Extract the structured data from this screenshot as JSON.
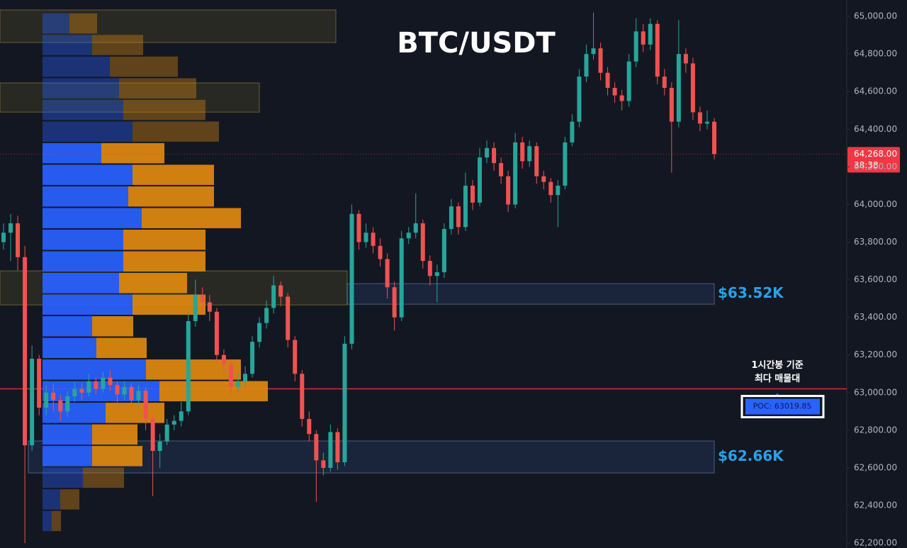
{
  "chart_data": {
    "type": "candlestick",
    "title": "BTC/USDT",
    "ylim": [
      62174,
      65087
    ],
    "yticks": [
      {
        "value": 65000,
        "label": "65,000.00"
      },
      {
        "value": 64800,
        "label": "64,800.00"
      },
      {
        "value": 64600,
        "label": "64,600.00"
      },
      {
        "value": 64400,
        "label": "64,400.00"
      },
      {
        "value": 64200,
        "label": "64,200.00"
      },
      {
        "value": 64000,
        "label": "64,000.00"
      },
      {
        "value": 63800,
        "label": "63,800.00"
      },
      {
        "value": 63600,
        "label": "63,600.00"
      },
      {
        "value": 63400,
        "label": "63,400.00"
      },
      {
        "value": 63200,
        "label": "63,200.00"
      },
      {
        "value": 63000,
        "label": "63,000.00"
      },
      {
        "value": 62800,
        "label": "62,800.00"
      },
      {
        "value": 62600,
        "label": "62,600.00"
      },
      {
        "value": 62400,
        "label": "62,400.00"
      },
      {
        "value": 62200,
        "label": "62,200.00"
      }
    ],
    "grid": false,
    "up_color": "#26a69a",
    "down_color": "#ef5350",
    "open": [
      63800,
      63850,
      63900,
      63720,
      62720,
      63180,
      62920,
      63000,
      62960,
      62900,
      62980,
      63020,
      63000,
      63060,
      63020,
      63080,
      63040,
      62990,
      63030,
      62960,
      63010,
      62860,
      62690,
      62740,
      62830,
      62850,
      62900,
      63380,
      63520,
      63480,
      63430,
      63200,
      63150,
      63030,
      63060,
      63100,
      63270,
      63370,
      63450,
      63570,
      63510,
      63280,
      63100,
      62860,
      62780,
      62640,
      62600,
      62790,
      62630,
      63260,
      63950,
      63800,
      63850,
      63780,
      63710,
      63560,
      63400,
      63820,
      63850,
      63900,
      63700,
      63620,
      63640,
      63870,
      63990,
      63880,
      64100,
      64010,
      64250,
      64300,
      64220,
      64150,
      64000,
      64330,
      64230,
      64310,
      64150,
      64120,
      64050,
      64100,
      64330,
      64440,
      64680,
      64800,
      64830,
      64700,
      64620,
      64580,
      64550,
      64760,
      64920,
      64850,
      64960,
      64680,
      64620,
      64440,
      64800,
      64750,
      64490,
      64430,
      64440
    ],
    "high": [
      63900,
      63950,
      63940,
      63780,
      63250,
      63200,
      63040,
      63050,
      62990,
      63010,
      63060,
      63050,
      63100,
      63080,
      63110,
      63120,
      63060,
      63060,
      63050,
      63040,
      63030,
      62880,
      62780,
      62860,
      62880,
      62950,
      63420,
      63600,
      63560,
      63520,
      63450,
      63230,
      63170,
      63100,
      63140,
      63300,
      63400,
      63490,
      63620,
      63590,
      63530,
      63300,
      63120,
      62900,
      62800,
      62680,
      62830,
      62810,
      63300,
      64000,
      63970,
      63900,
      63880,
      63820,
      63740,
      63590,
      63860,
      63880,
      64060,
      63920,
      63730,
      63680,
      63900,
      64030,
      64010,
      64170,
      64130,
      64300,
      64340,
      64330,
      64250,
      64180,
      64380,
      64360,
      64340,
      64330,
      64180,
      64140,
      64130,
      64360,
      64480,
      64720,
      64850,
      65020,
      64860,
      64730,
      64650,
      64610,
      64800,
      64990,
      64960,
      64990,
      64980,
      64720,
      64650,
      64980,
      64830,
      64780,
      64520,
      64500,
      64460
    ],
    "low": [
      63760,
      63700,
      63650,
      62200,
      62690,
      62880,
      62880,
      62900,
      62850,
      62870,
      62950,
      62960,
      62980,
      62990,
      63000,
      63010,
      62950,
      62960,
      62920,
      62930,
      62800,
      62450,
      62600,
      62720,
      62800,
      62820,
      62880,
      63350,
      63420,
      63380,
      63160,
      63100,
      62990,
      63000,
      63030,
      63080,
      63240,
      63340,
      63420,
      63460,
      63240,
      63060,
      62820,
      62740,
      62420,
      62560,
      62580,
      62590,
      62610,
      63230,
      63760,
      63770,
      63740,
      63670,
      63500,
      63330,
      63380,
      63790,
      63820,
      63660,
      63570,
      63480,
      63610,
      63840,
      63840,
      63860,
      63970,
      63990,
      64220,
      64180,
      64110,
      63960,
      63980,
      64190,
      64200,
      64110,
      64080,
      64010,
      63880,
      64080,
      64310,
      64410,
      64650,
      64770,
      64660,
      64580,
      64540,
      64500,
      64520,
      64730,
      64810,
      64820,
      64640,
      64580,
      64170,
      64410,
      64700,
      64450,
      64390,
      64400,
      64240
    ],
    "close": [
      63850,
      63900,
      63720,
      62720,
      63180,
      62920,
      63000,
      62960,
      62900,
      62980,
      63020,
      63000,
      63060,
      63020,
      63080,
      63040,
      62990,
      63030,
      62960,
      63010,
      62860,
      62690,
      62740,
      62830,
      62850,
      62900,
      63380,
      63520,
      63480,
      63430,
      63200,
      63150,
      63030,
      63060,
      63100,
      63270,
      63370,
      63450,
      63570,
      63510,
      63280,
      63100,
      62860,
      62780,
      62640,
      62600,
      62790,
      62630,
      63260,
      63950,
      63800,
      63850,
      63780,
      63710,
      63560,
      63400,
      63820,
      63850,
      63900,
      63700,
      63620,
      63640,
      63870,
      63990,
      63880,
      64100,
      64010,
      64250,
      64300,
      64220,
      64150,
      64000,
      64330,
      64230,
      64310,
      64150,
      64120,
      64050,
      64100,
      64330,
      64440,
      64680,
      64800,
      64830,
      64700,
      64620,
      64580,
      64550,
      64760,
      64920,
      64850,
      64960,
      64680,
      64620,
      64440,
      64800,
      64750,
      64490,
      64430,
      64440,
      64268
    ],
    "profile": {
      "bins": [
        65020,
        64905,
        64790,
        64675,
        64560,
        64445,
        64330,
        64215,
        64100,
        63985,
        63870,
        63755,
        63640,
        63525,
        63410,
        63295,
        63180,
        63065,
        62950,
        62835,
        62720,
        62605,
        62490,
        62375,
        62260
      ],
      "buy_color": "#2962ff",
      "sell_color": "#e08a10",
      "buy": [
        38,
        70,
        95,
        108,
        114,
        127,
        83,
        127,
        121,
        140,
        114,
        114,
        108,
        127,
        70,
        76,
        146,
        165,
        89,
        70,
        70,
        57,
        25,
        13
      ],
      "sell": [
        39,
        72,
        96,
        109,
        116,
        122,
        89,
        115,
        121,
        140,
        116,
        116,
        96,
        103,
        58,
        71,
        134,
        153,
        83,
        64,
        71,
        58,
        27,
        13
      ],
      "value_area": [
        62605,
        64330
      ]
    },
    "highlight_boxes": [
      {
        "top": 65034,
        "bottom": 64861
      },
      {
        "top": 64646,
        "bottom": 64491
      },
      {
        "top": 63647,
        "bottom": 63466
      }
    ],
    "zones": [
      {
        "top": 63579,
        "bottom": 63470,
        "label": "$63.52K"
      },
      {
        "top": 62743,
        "bottom": 62573,
        "label": "$62.66K"
      }
    ],
    "poc": {
      "value": 63019.85,
      "label": "POC: 63019.85"
    },
    "poc_note": [
      "1시간봉 기준",
      "최다 매물대"
    ],
    "last_price": {
      "value": 64268,
      "label": "64,268.00"
    },
    "countdown": "38:38"
  }
}
